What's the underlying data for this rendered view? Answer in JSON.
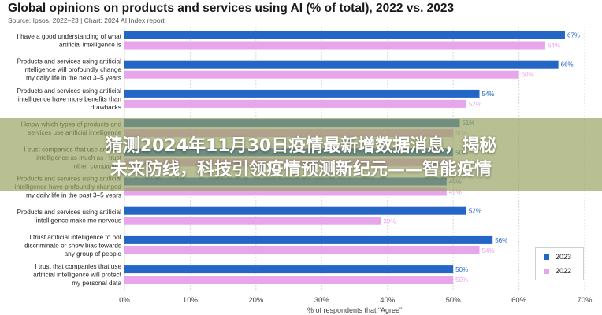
{
  "header": {
    "title": "Global opinions on products and services using AI (% of total), 2022 vs. 2023",
    "subtitle": "Source: Ipsos, 2022–23 | Chart: 2024 AI Index report"
  },
  "overlay": {
    "line1": "猜测2024年11月30日疫情最新增数据消息，揭秘",
    "line2": "未来防线，科技引领疫情预测新纪元——智能疫情"
  },
  "colors": {
    "s2023": "#2466c6",
    "s2022": "#e7a6ec",
    "grid": "#d8d8d8"
  },
  "chart_data": {
    "type": "bar",
    "orientation": "horizontal",
    "xlabel": "% of respondents that “Agree”",
    "xlim": [
      0,
      70
    ],
    "xticks": [
      "0%",
      "10%",
      "20%",
      "30%",
      "40%",
      "50%",
      "60%",
      "70%"
    ],
    "grid": true,
    "legend_position": "bottom-right",
    "categories": [
      [
        "I have a good understanding of what",
        "artificial intelligence is"
      ],
      [
        "Products and services using artificial",
        "intelligence will profoundly change",
        "my daily life in the next 3–5 years"
      ],
      [
        "Products and services using artificial",
        "intelligence have more benefits than",
        "drawbacks"
      ],
      [
        "I know which types of products and",
        "services use artificial intelligence"
      ],
      [
        "I trust companies that use artificial",
        "intelligence as much as I trust",
        "other companies"
      ],
      [
        "Products and services using artificial",
        "intelligence have profoundly changed",
        "my daily life in the past 3–5 years"
      ],
      [
        "Products and services using artificial",
        "intelligence make me nervous"
      ],
      [
        "I trust artificial intelligence to not",
        "discriminate or show bias towards",
        "any group of people"
      ],
      [
        "I trust that companies that use",
        "artificial intelligence will protect",
        "my personal data"
      ]
    ],
    "series": [
      {
        "name": "2023",
        "values": [
          67,
          66,
          54,
          51,
          50,
          49,
          52,
          56,
          50
        ]
      },
      {
        "name": "2022",
        "values": [
          64,
          60,
          52,
          50,
          50,
          49,
          39,
          54,
          50
        ]
      }
    ]
  }
}
